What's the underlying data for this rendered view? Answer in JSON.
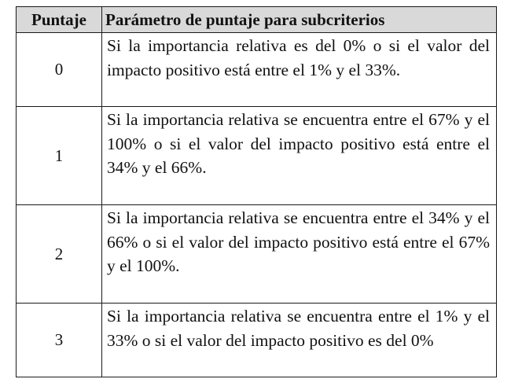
{
  "table": {
    "headers": {
      "score": "Puntaje",
      "parameter": "Parámetro de puntaje para subcriterios"
    },
    "rows": [
      {
        "score": "0",
        "description": "Si la importancia relativa es del 0% o si el valor del impacto positivo está entre el 1% y el 33%."
      },
      {
        "score": "1",
        "description": "Si la importancia relativa se encuentra entre el 67% y el 100% o si el valor del impacto positivo está entre el 34% y el 66%."
      },
      {
        "score": "2",
        "description": "Si la importancia relativa se encuentra entre el 34% y el 66% o si el valor del impacto positivo está entre el 67% y el 100%."
      },
      {
        "score": "3",
        "description": "Si la importancia relativa se encuentra entre el 1% y el 33% o si el valor del impacto positivo es del 0%"
      }
    ]
  }
}
